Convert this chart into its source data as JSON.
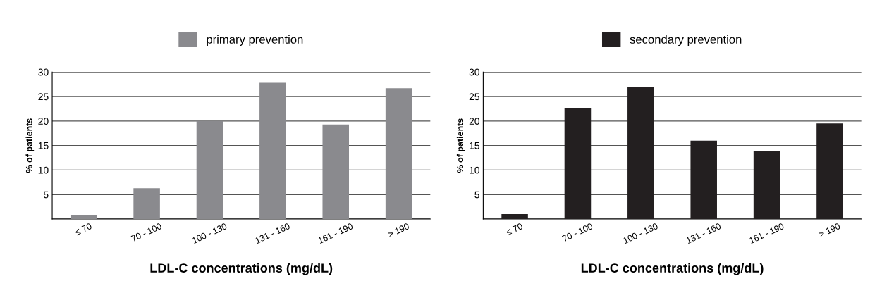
{
  "chart_data": [
    {
      "type": "bar",
      "categories": [
        "≤ 70",
        "70 - 100",
        "100 - 130",
        "131 - 160",
        "161 - 190",
        "> 190"
      ],
      "xlabel": "LDL-C concentrations (mg/dL)",
      "ylabel": "% of patients",
      "ylim": [
        0,
        30
      ],
      "yticks": [
        {
          "value": 0,
          "label": null
        },
        5,
        10,
        15,
        20,
        25,
        30
      ],
      "grid": "y",
      "legend": "top",
      "series": [
        {
          "name": "primary prevention",
          "color": "#8a8a8e",
          "values": [
            0.8,
            6.3,
            20,
            27.8,
            19.3,
            26.7
          ]
        }
      ]
    },
    {
      "type": "bar",
      "categories": [
        "≤ 70",
        "70 - 100",
        "100 - 130",
        "131 - 160",
        "161 - 190",
        "> 190"
      ],
      "xlabel": "LDL-C concentrations (mg/dL)",
      "ylabel": "% of patients",
      "ylim": [
        0,
        30
      ],
      "yticks": [
        {
          "value": 0,
          "label": null
        },
        5,
        10,
        15,
        20,
        25,
        30
      ],
      "grid": "y",
      "legend": "top",
      "series": [
        {
          "name": "secondary prevention",
          "color": "#231f20",
          "values": [
            1,
            22.7,
            26.9,
            16,
            13.8,
            19.5
          ]
        }
      ]
    }
  ]
}
